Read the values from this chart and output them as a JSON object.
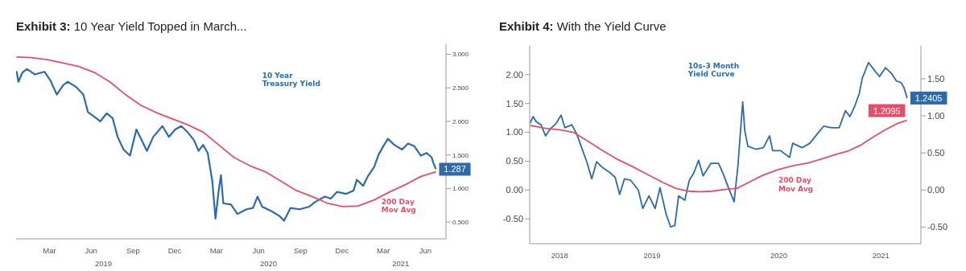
{
  "chart_data": [
    {
      "type": "line",
      "title": "Exhibit 3: 10 Year Yield Topped in March...",
      "marker": "none",
      "line_style": "solid",
      "xlim": [
        "2019-01-02",
        "2021-07-30"
      ],
      "xticks": [
        {
          "value": "2019-03-16",
          "label": "Mar"
        },
        {
          "value": "2019-06-15",
          "label": "Jun"
        },
        {
          "value": "2019-09-15",
          "label": "Sep"
        },
        {
          "value": "2019-12-15",
          "label": "Dec"
        },
        {
          "value": "2020-03-15",
          "label": "Mar"
        },
        {
          "value": "2020-06-15",
          "label": "Jun"
        },
        {
          "value": "2020-09-15",
          "label": "Sep"
        },
        {
          "value": "2020-12-15",
          "label": "Dec"
        },
        {
          "value": "2021-03-15",
          "label": "Mar"
        },
        {
          "value": "2021-06-15",
          "label": "Jun"
        }
      ],
      "x2lim": [
        "2019-01-02",
        "2021-07-30"
      ],
      "x2ticks": [
        {
          "value": "2019-07-12",
          "label": "2019"
        },
        {
          "value": "2020-07-07",
          "label": "2020"
        },
        {
          "value": "2021-04-22",
          "label": "2021"
        }
      ],
      "y2lim": [
        0.25,
        3.15
      ],
      "y2ticks": [
        {
          "value": 0.5,
          "label": "0.500"
        },
        {
          "value": 1,
          "label": "1.000"
        },
        {
          "value": 1.5,
          "label": "1.500"
        },
        {
          "value": 2,
          "label": "2.000"
        },
        {
          "value": 2.5,
          "label": "2.500"
        },
        {
          "value": 3,
          "label": "3.000"
        }
      ],
      "series": [
        {
          "name": "10 Year Treasury Yield",
          "color": "#2e6aa8",
          "axis": "y2",
          "x": [
            "2019-01-03",
            "2019-01-07",
            "2019-01-16",
            "2019-01-26",
            "2019-02-12",
            "2019-03-05",
            "2019-03-18",
            "2019-04-01",
            "2019-04-15",
            "2019-04-25",
            "2019-05-12",
            "2019-05-29",
            "2019-06-08",
            "2019-06-22",
            "2019-07-05",
            "2019-07-19",
            "2019-08-01",
            "2019-08-12",
            "2019-08-25",
            "2019-09-08",
            "2019-09-22",
            "2019-10-05",
            "2019-10-15",
            "2019-10-29",
            "2019-11-18",
            "2019-12-02",
            "2019-12-16",
            "2019-12-29",
            "2020-01-12",
            "2020-01-26",
            "2020-02-05",
            "2020-02-15",
            "2020-02-25",
            "2020-03-06",
            "2020-03-13",
            "2020-03-20",
            "2020-03-25",
            "2020-03-30",
            "2020-04-16",
            "2020-04-30",
            "2020-05-20",
            "2020-06-03",
            "2020-06-13",
            "2020-06-23",
            "2020-07-14",
            "2020-07-31",
            "2020-08-10",
            "2020-08-24",
            "2020-09-13",
            "2020-10-04",
            "2020-10-17",
            "2020-11-07",
            "2020-11-20",
            "2020-12-04",
            "2020-12-24",
            "2021-01-09",
            "2021-01-16",
            "2021-01-30",
            "2021-02-09",
            "2021-02-23",
            "2021-03-05",
            "2021-03-15",
            "2021-03-25",
            "2021-04-08",
            "2021-04-25",
            "2021-05-08",
            "2021-05-22",
            "2021-06-05",
            "2021-06-18",
            "2021-06-29",
            "2021-07-02",
            "2021-07-08"
          ],
          "values": [
            2.75,
            2.59,
            2.73,
            2.78,
            2.7,
            2.74,
            2.61,
            2.4,
            2.54,
            2.59,
            2.52,
            2.4,
            2.14,
            2.07,
            2.0,
            2.12,
            2.05,
            1.77,
            1.58,
            1.49,
            1.88,
            1.7,
            1.56,
            1.77,
            1.93,
            1.77,
            1.88,
            1.93,
            1.84,
            1.72,
            1.56,
            1.65,
            1.53,
            1.11,
            0.55,
            0.97,
            1.2,
            0.78,
            0.76,
            0.62,
            0.69,
            0.71,
            0.88,
            0.73,
            0.66,
            0.59,
            0.52,
            0.71,
            0.69,
            0.73,
            0.8,
            0.88,
            0.85,
            0.95,
            0.92,
            0.97,
            1.13,
            1.04,
            1.18,
            1.32,
            1.51,
            1.63,
            1.74,
            1.65,
            1.58,
            1.67,
            1.63,
            1.49,
            1.53,
            1.46,
            1.39,
            1.287
          ],
          "value_labels": [
            null,
            null,
            null,
            null,
            null,
            null,
            null,
            null,
            null,
            null,
            null,
            null,
            null,
            null,
            null,
            null,
            null,
            null,
            null,
            null,
            null,
            null,
            null,
            null,
            null,
            null,
            null,
            null,
            null,
            null,
            null,
            null,
            null,
            null,
            null,
            null,
            null,
            null,
            null,
            null,
            null,
            null,
            null,
            null,
            null,
            null,
            null,
            null,
            null,
            null,
            null,
            null,
            null,
            null,
            null,
            null,
            null,
            null,
            null,
            null,
            null,
            null,
            null,
            null,
            null,
            null,
            null,
            null,
            null,
            null,
            null,
            "1.287"
          ]
        },
        {
          "name": "200 Day Mov Avg",
          "color": "#e0506a",
          "axis": "y2",
          "x": [
            "2019-01-03",
            "2019-02-05",
            "2019-03-11",
            "2019-04-15",
            "2019-05-19",
            "2019-06-22",
            "2019-07-26",
            "2019-08-29",
            "2019-10-02",
            "2019-11-05",
            "2019-12-09",
            "2020-01-12",
            "2020-02-15",
            "2020-03-20",
            "2020-04-23",
            "2020-05-27",
            "2020-06-30",
            "2020-08-03",
            "2020-09-06",
            "2020-10-10",
            "2020-11-13",
            "2020-12-17",
            "2021-01-19",
            "2021-02-23",
            "2021-03-29",
            "2021-05-03",
            "2021-06-05",
            "2021-07-08"
          ],
          "values": [
            2.96,
            2.95,
            2.92,
            2.87,
            2.82,
            2.73,
            2.59,
            2.4,
            2.24,
            2.13,
            2.04,
            1.95,
            1.84,
            1.65,
            1.46,
            1.34,
            1.25,
            1.11,
            0.97,
            0.88,
            0.78,
            0.73,
            0.74,
            0.83,
            0.95,
            1.06,
            1.18,
            1.25
          ]
        }
      ]
    },
    {
      "type": "line",
      "title": "Exhibit 4: With the Yield Curve",
      "marker": "none",
      "line_style": "solid",
      "xlim": [
        "2018-07-09",
        "2021-08-17"
      ],
      "xticks": [
        {
          "value": "2018-10-04",
          "label": "2018"
        },
        {
          "value": "2019-06-29",
          "label": "2019"
        },
        {
          "value": "2020-07-01",
          "label": "2020"
        },
        {
          "value": "2021-04-23",
          "label": "2021"
        }
      ],
      "ylim": [
        -0.93,
        2.5
      ],
      "yticks": [
        {
          "value": -0.5,
          "label": "-0.50"
        },
        {
          "value": 0,
          "label": "0.00"
        },
        {
          "value": 0.5,
          "label": "0.50"
        },
        {
          "value": 1,
          "label": "1.00"
        },
        {
          "value": 1.5,
          "label": "1.50"
        },
        {
          "value": 2,
          "label": "2.00"
        }
      ],
      "y2lim": [
        -0.725,
        1.945
      ],
      "y2ticks": [
        {
          "value": -0.5,
          "label": "-0.50"
        },
        {
          "value": 0,
          "label": "0.00"
        },
        {
          "value": 0.5,
          "label": "0.50"
        },
        {
          "value": 1,
          "label": "1.00"
        },
        {
          "value": 1.5,
          "label": "1.50"
        }
      ],
      "series": [
        {
          "name": "10s-3 Month Yield Curve",
          "color": "#2e6aa8",
          "axis": "y2",
          "x": [
            "2018-07-10",
            "2018-07-19",
            "2018-07-28",
            "2018-08-11",
            "2018-08-24",
            "2018-09-06",
            "2018-09-24",
            "2018-10-08",
            "2018-10-19",
            "2018-11-08",
            "2018-11-22",
            "2018-12-10",
            "2018-12-23",
            "2019-01-05",
            "2019-01-19",
            "2019-02-06",
            "2019-02-28",
            "2019-03-14",
            "2019-03-27",
            "2019-04-10",
            "2019-04-28",
            "2019-05-20",
            "2019-06-02",
            "2019-06-20",
            "2019-07-08",
            "2019-07-22",
            "2019-08-09",
            "2019-08-22",
            "2019-09-03",
            "2019-09-14",
            "2019-10-02",
            "2019-10-15",
            "2019-10-28",
            "2019-11-11",
            "2019-11-24",
            "2019-12-17",
            "2020-01-08",
            "2020-01-22",
            "2020-02-04",
            "2020-02-22",
            "2020-03-04",
            "2020-03-18",
            "2020-03-24",
            "2020-04-02",
            "2020-04-25",
            "2020-05-17",
            "2020-06-04",
            "2020-06-13",
            "2020-07-06",
            "2020-08-01",
            "2020-08-10",
            "2020-09-06",
            "2020-09-29",
            "2020-10-21",
            "2020-11-08",
            "2020-12-01",
            "2020-12-23",
            "2021-01-10",
            "2021-01-23",
            "2021-02-06",
            "2021-02-19",
            "2021-02-28",
            "2021-03-18",
            "2021-04-05",
            "2021-04-19",
            "2021-05-06",
            "2021-05-24",
            "2021-06-07",
            "2021-06-20",
            "2021-06-29",
            "2021-07-08"
          ],
          "values": [
            0.9,
            0.99,
            0.92,
            0.88,
            0.73,
            0.82,
            0.9,
            1.01,
            0.84,
            0.88,
            0.76,
            0.53,
            0.36,
            0.15,
            0.38,
            0.3,
            0.23,
            0.17,
            -0.06,
            0.15,
            0.13,
            0.0,
            -0.25,
            -0.08,
            -0.25,
            0.03,
            -0.33,
            -0.5,
            -0.48,
            -0.08,
            -0.14,
            0.13,
            0.23,
            0.4,
            0.19,
            0.36,
            0.36,
            0.21,
            0.05,
            -0.16,
            0.32,
            1.19,
            0.8,
            0.59,
            0.55,
            0.57,
            0.73,
            0.53,
            0.53,
            0.44,
            0.63,
            0.57,
            0.63,
            0.76,
            0.86,
            0.84,
            0.84,
            1.07,
            0.99,
            1.13,
            1.3,
            1.51,
            1.72,
            1.61,
            1.53,
            1.65,
            1.57,
            1.47,
            1.45,
            1.38,
            1.2405
          ],
          "value_labels": [
            null,
            null,
            null,
            null,
            null,
            null,
            null,
            null,
            null,
            null,
            null,
            null,
            null,
            null,
            null,
            null,
            null,
            null,
            null,
            null,
            null,
            null,
            null,
            null,
            null,
            null,
            null,
            null,
            null,
            null,
            null,
            null,
            null,
            null,
            null,
            null,
            null,
            null,
            null,
            null,
            null,
            null,
            null,
            null,
            null,
            null,
            null,
            null,
            null,
            null,
            null,
            null,
            null,
            null,
            null,
            null,
            null,
            null,
            null,
            null,
            null,
            null,
            null,
            null,
            null,
            null,
            null,
            null,
            null,
            null,
            "1.2405"
          ]
        },
        {
          "name": "200 Day Mov Avg",
          "color": "#e0506a",
          "x": [
            "2018-07-10",
            "2018-08-24",
            "2018-10-08",
            "2018-11-13",
            "2018-12-19",
            "2019-02-01",
            "2019-03-18",
            "2019-05-02",
            "2019-06-16",
            "2019-07-31",
            "2019-09-05",
            "2019-10-11",
            "2019-11-15",
            "2019-12-21",
            "2020-01-26",
            "2020-03-02",
            "2020-04-07",
            "2020-05-13",
            "2020-06-27",
            "2020-08-10",
            "2020-09-24",
            "2020-11-08",
            "2020-12-14",
            "2021-01-19",
            "2021-02-24",
            "2021-04-01",
            "2021-05-07",
            "2021-06-12",
            "2021-07-07"
          ],
          "values": [
            1.12,
            1.07,
            1.04,
            1.0,
            0.87,
            0.7,
            0.54,
            0.41,
            0.27,
            0.13,
            0.03,
            -0.02,
            -0.03,
            -0.02,
            0.01,
            0.03,
            0.14,
            0.25,
            0.35,
            0.42,
            0.47,
            0.55,
            0.62,
            0.68,
            0.78,
            0.92,
            1.05,
            1.16,
            1.2095
          ],
          "value_labels": [
            null,
            null,
            null,
            null,
            null,
            null,
            null,
            null,
            null,
            null,
            null,
            null,
            null,
            null,
            null,
            null,
            null,
            null,
            null,
            null,
            null,
            null,
            null,
            null,
            null,
            null,
            null,
            null,
            "1.2095"
          ]
        }
      ]
    }
  ]
}
